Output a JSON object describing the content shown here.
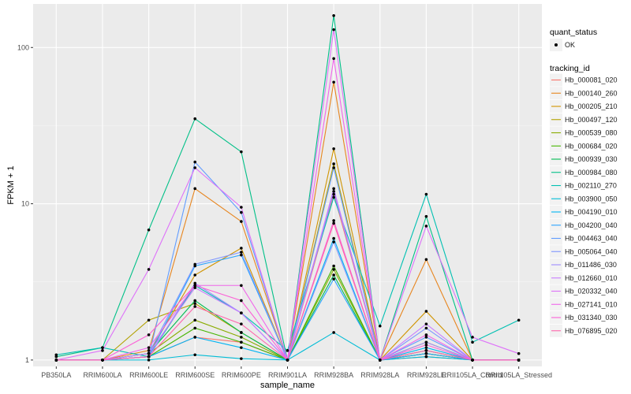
{
  "chart_data": {
    "type": "line",
    "xlabel": "sample_name",
    "ylabel": "FPKM + 1",
    "y_scale": "log10",
    "ylim": [
      0.91,
      190
    ],
    "y_ticks": [
      1,
      10,
      100
    ],
    "y_tick_labels": [
      "1",
      "10",
      "100"
    ],
    "grid": true,
    "legend_position": "right",
    "categories": [
      "PB350LA",
      "RRIM600LA",
      "RRIM600LE",
      "RRIM600SE",
      "RRIM600PE",
      "RRIM901LA",
      "RRIM928BA",
      "RRIM928LA",
      "RRIM928LE",
      "RRII105LA_Control",
      "RRII105LA_Stressed"
    ],
    "shape_legend": {
      "title": "quant_status",
      "items": [
        "OK"
      ]
    },
    "color_legend_title": "tracking_id",
    "series": [
      {
        "name": "Hb_000081_020",
        "color": "#F8766D",
        "values": [
          1.0,
          1.0,
          1.05,
          1.4,
          1.3,
          1.0,
          11.5,
          1.0,
          1.05,
          1.0,
          1.0
        ]
      },
      {
        "name": "Hb_000140_260",
        "color": "#E7851E",
        "values": [
          1.0,
          1.0,
          1.15,
          12.5,
          7.7,
          1.0,
          60.0,
          1.0,
          4.4,
          1.0,
          1.0
        ]
      },
      {
        "name": "Hb_000205_210",
        "color": "#D09400",
        "values": [
          1.0,
          1.0,
          1.1,
          3.5,
          5.2,
          1.0,
          22.5,
          1.0,
          2.05,
          1.0,
          1.0
        ]
      },
      {
        "name": "Hb_000497_120",
        "color": "#B2A100",
        "values": [
          1.0,
          1.0,
          1.8,
          2.3,
          1.5,
          1.0,
          18.0,
          1.0,
          1.3,
          1.0,
          1.0
        ]
      },
      {
        "name": "Hb_000539_080",
        "color": "#89AC00",
        "values": [
          1.0,
          1.0,
          1.1,
          1.8,
          1.4,
          1.0,
          3.8,
          1.0,
          1.1,
          1.0,
          1.0
        ]
      },
      {
        "name": "Hb_000684_020",
        "color": "#45B500",
        "values": [
          1.0,
          1.0,
          1.05,
          1.6,
          1.3,
          1.0,
          4.0,
          1.0,
          1.1,
          1.0,
          1.0
        ]
      },
      {
        "name": "Hb_000939_030",
        "color": "#00BC51",
        "values": [
          1.0,
          1.0,
          1.1,
          2.4,
          1.5,
          1.0,
          3.5,
          1.0,
          1.15,
          1.0,
          1.0
        ]
      },
      {
        "name": "Hb_000984_080",
        "color": "#00C087",
        "values": [
          1.05,
          1.2,
          6.8,
          35.0,
          21.5,
          1.0,
          160.0,
          1.0,
          8.3,
          1.0,
          1.0
        ]
      },
      {
        "name": "Hb_002110_270",
        "color": "#00C0B2",
        "values": [
          1.08,
          1.2,
          1.05,
          3.0,
          2.0,
          1.15,
          11.0,
          1.65,
          11.5,
          1.3,
          1.8
        ]
      },
      {
        "name": "Hb_003900_050",
        "color": "#00BCD6",
        "values": [
          1.0,
          1.0,
          1.0,
          1.08,
          1.02,
          1.0,
          1.5,
          1.0,
          1.05,
          1.0,
          1.0
        ]
      },
      {
        "name": "Hb_004190_010",
        "color": "#00B3F2",
        "values": [
          1.0,
          1.0,
          1.05,
          1.4,
          1.2,
          1.0,
          6.0,
          1.0,
          1.2,
          1.0,
          1.0
        ]
      },
      {
        "name": "Hb_004200_040",
        "color": "#29A3FF",
        "values": [
          1.0,
          1.0,
          1.05,
          4.0,
          4.7,
          1.0,
          3.3,
          1.0,
          1.1,
          1.0,
          1.0
        ]
      },
      {
        "name": "Hb_004463_040",
        "color": "#619CFF",
        "values": [
          1.0,
          1.0,
          1.05,
          18.5,
          8.8,
          1.0,
          17.0,
          1.0,
          1.4,
          1.0,
          1.0
        ]
      },
      {
        "name": "Hb_005064_040",
        "color": "#7F96FF",
        "values": [
          1.0,
          1.0,
          1.1,
          4.1,
          4.9,
          1.0,
          5.7,
          1.0,
          1.6,
          1.0,
          1.0
        ]
      },
      {
        "name": "Hb_011486_030",
        "color": "#9F8CFF",
        "values": [
          1.0,
          1.0,
          1.05,
          3.1,
          2.0,
          1.0,
          12.0,
          1.0,
          1.3,
          1.0,
          1.0
        ]
      },
      {
        "name": "Hb_012660_010",
        "color": "#C77CFF",
        "values": [
          1.0,
          1.0,
          1.1,
          2.9,
          2.0,
          1.0,
          12.5,
          1.0,
          1.7,
          1.0,
          1.0
        ]
      },
      {
        "name": "Hb_020332_040",
        "color": "#DE71F9",
        "values": [
          1.0,
          1.15,
          3.8,
          17.0,
          9.5,
          1.0,
          130.0,
          1.0,
          7.2,
          1.4,
          1.1
        ]
      },
      {
        "name": "Hb_027141_010",
        "color": "#F066EA",
        "values": [
          1.0,
          1.0,
          1.2,
          3.0,
          3.0,
          1.0,
          85.0,
          1.0,
          1.45,
          1.0,
          1.0
        ]
      },
      {
        "name": "Hb_031340_030",
        "color": "#FB61D7",
        "values": [
          1.0,
          1.0,
          1.45,
          3.0,
          2.4,
          1.0,
          7.8,
          1.0,
          1.25,
          1.0,
          1.0
        ]
      },
      {
        "name": "Hb_076895_020",
        "color": "#FF65AC",
        "values": [
          1.0,
          1.0,
          1.05,
          2.2,
          1.7,
          1.0,
          7.5,
          1.0,
          1.15,
          1.0,
          1.0
        ]
      }
    ]
  }
}
